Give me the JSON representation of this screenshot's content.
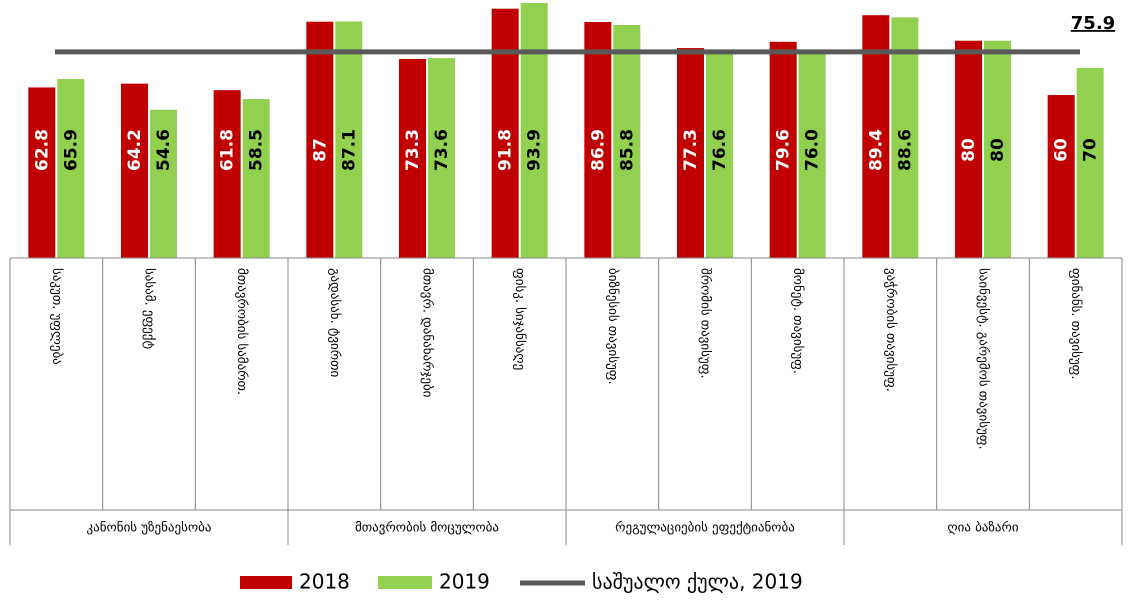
{
  "chart_data": {
    "type": "bar",
    "categories": [
      "საკუთ. უფლება",
      "სასამ. ეფექტ",
      "მთავრობის სამართ.",
      "გადასახ. ტვირთი",
      "მთავრ. დანახარჯები",
      "ფისკ. სიჯანსაღე",
      "ბიზნესის თავისუფ.",
      "შრომის თავისუფ.",
      "მონეტ. თავისუფ.",
      "ვაჭრობის თავისუფ.",
      "საინვესტ. გარემოს თავისუფ.",
      "ფინანს. თავისუფ."
    ],
    "groups": [
      {
        "name": "კანონის უზენაესობა",
        "size": 3
      },
      {
        "name": "მთავრობის მოცულობა",
        "size": 3
      },
      {
        "name": "რეგულაციების ეფექტიანობა",
        "size": 3
      },
      {
        "name": "ღია ბაზარი",
        "size": 3
      }
    ],
    "series": [
      {
        "name": "2018",
        "color": "#c00000",
        "values": [
          62.8,
          64.2,
          61.8,
          87,
          73.3,
          91.8,
          86.9,
          77.3,
          79.6,
          89.4,
          80,
          60
        ]
      },
      {
        "name": "2019",
        "color": "#92d050",
        "values": [
          65.9,
          54.6,
          58.5,
          87.1,
          73.6,
          93.9,
          85.8,
          76.6,
          76.0,
          88.6,
          80,
          70
        ],
        "value_labels": [
          "65.9",
          "54.6",
          "58.5",
          "87.1",
          "73.6",
          "93.9",
          "85.8",
          "76.6",
          "76.0",
          "88.6",
          "80",
          "70"
        ]
      }
    ],
    "reference_line": {
      "name": "საშუალო ქულა, 2019",
      "value": 75.9,
      "label": "75.9",
      "color": "#595959"
    },
    "ylim": [
      0,
      95
    ]
  }
}
